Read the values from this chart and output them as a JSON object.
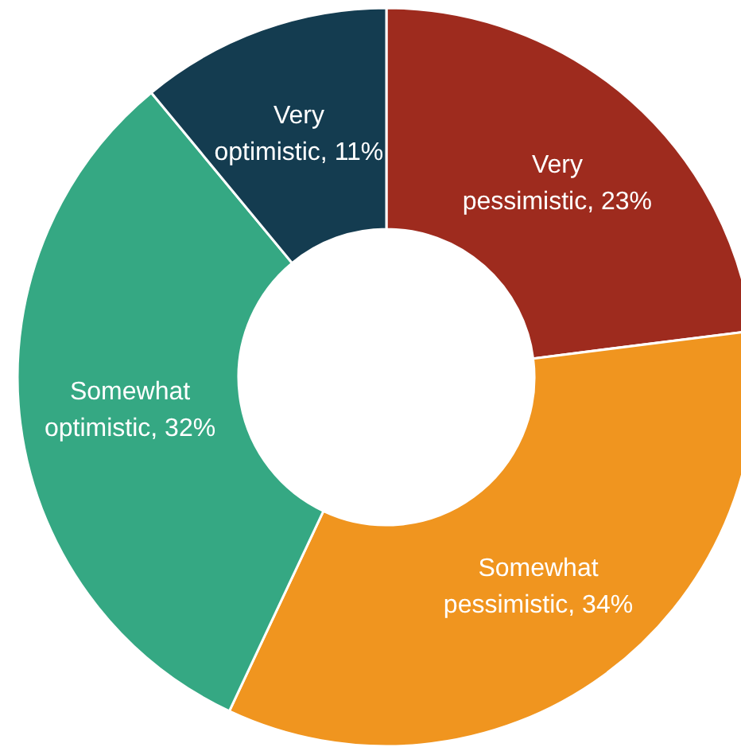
{
  "chart_data": {
    "type": "donut",
    "categories": [
      "Very pessimistic",
      "Somewhat pessimistic",
      "Somewhat optimistic",
      "Very optimistic"
    ],
    "values": [
      23,
      34,
      32,
      11
    ],
    "colors": [
      "#9e2b1e",
      "#f0951f",
      "#35a883",
      "#143c50"
    ],
    "value_labels": [
      "23%",
      "34%",
      "32%",
      "11%"
    ]
  }
}
